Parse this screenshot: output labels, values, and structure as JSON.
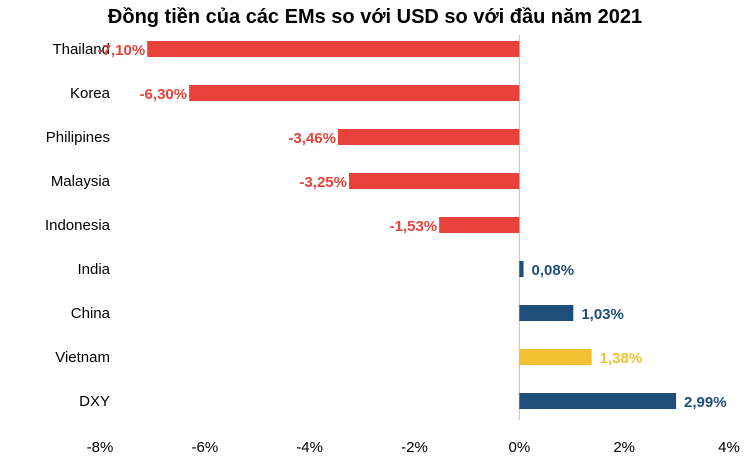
{
  "chart_data": {
    "type": "bar",
    "orientation": "horizontal",
    "title": "Đồng tiền của các EMs so với USD so với đầu năm 2021",
    "categories": [
      "Thailand",
      "Korea",
      "Philipines",
      "Malaysia",
      "Indonesia",
      "India",
      "China",
      "Vietnam",
      "DXY"
    ],
    "values": [
      -7.1,
      -6.3,
      -3.46,
      -3.25,
      -1.53,
      0.08,
      1.03,
      1.38,
      2.99
    ],
    "data_labels": [
      "-7,10%",
      "-6,30%",
      "-3,46%",
      "-3,25%",
      "-1,53%",
      "0,08%",
      "1,03%",
      "1,38%",
      "2,99%"
    ],
    "bar_colors": [
      "#e8423a",
      "#e8423a",
      "#e8423a",
      "#e8423a",
      "#e8423a",
      "#1f4e79",
      "#1f4e79",
      "#f4c033",
      "#1f4e79"
    ],
    "xlim": [
      -8,
      4
    ],
    "xticks": [
      -8,
      -6,
      -4,
      -2,
      0,
      2,
      4
    ],
    "xtick_labels": [
      "-8%",
      "-6%",
      "-4%",
      "-2%",
      "0%",
      "2%",
      "4%"
    ],
    "grid": false,
    "legend": "none"
  }
}
